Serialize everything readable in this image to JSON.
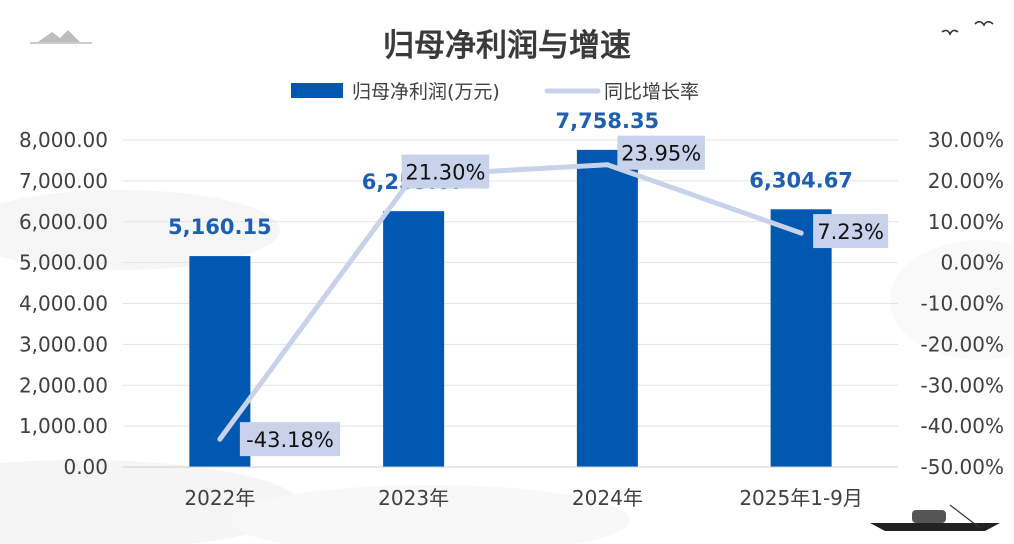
{
  "chart_data": {
    "type": "bar+line",
    "title": "归母净利润与增速",
    "categories": [
      "2022年",
      "2023年",
      "2024年",
      "2025年1-9月"
    ],
    "series": [
      {
        "name": "归母净利润(万元)",
        "type": "bar",
        "axis": "left",
        "values": [
          5160.15,
          6259.07,
          7758.35,
          6304.67
        ],
        "labels": [
          "5,160.15",
          "6,259.07",
          "7,758.35",
          "6,304.67"
        ],
        "color": "#0058b0"
      },
      {
        "name": "同比增长率",
        "type": "line",
        "axis": "right",
        "values": [
          -43.18,
          21.3,
          23.95,
          7.23
        ],
        "labels": [
          "-43.18%",
          "21.30%",
          "23.95%",
          "7.23%"
        ],
        "color": "#c8d2ea"
      }
    ],
    "y_left": {
      "min": 0,
      "max": 8000,
      "step": 1000,
      "tick_labels": [
        "0.00",
        "1,000.00",
        "2,000.00",
        "3,000.00",
        "4,000.00",
        "5,000.00",
        "6,000.00",
        "7,000.00",
        "8,000.00"
      ]
    },
    "y_right": {
      "min": -50,
      "max": 30,
      "step": 10,
      "tick_labels": [
        "-50.00%",
        "-40.00%",
        "-30.00%",
        "-20.00%",
        "-10.00%",
        "0.00%",
        "10.00%",
        "20.00%",
        "30.00%"
      ]
    },
    "legend_position": "top-center",
    "grid": true
  },
  "colors": {
    "bar": "#0058b0",
    "line": "#c8d2ea",
    "label_box": "#c8d2ea",
    "bar_label": "#1d5fb0",
    "grid": "#e3e3e3",
    "text": "#404040",
    "title": "#3a3a3a"
  }
}
